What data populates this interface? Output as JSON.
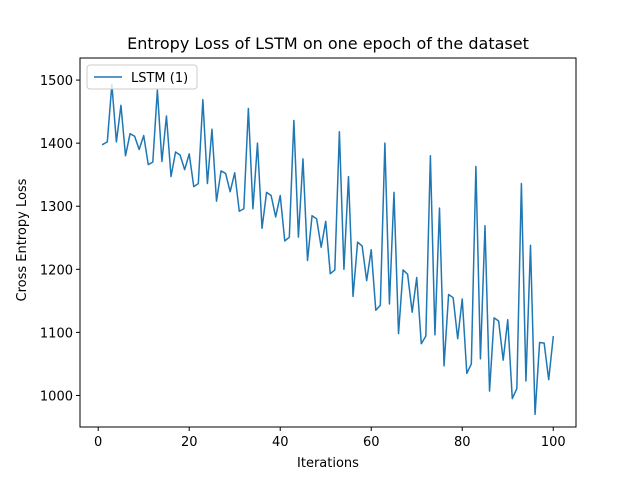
{
  "chart_data": {
    "type": "line",
    "title": "Entropy Loss of LSTM on one epoch of the dataset",
    "xlabel": "Iterations",
    "ylabel": "Cross Entropy Loss",
    "xlim": [
      -4,
      105
    ],
    "ylim": [
      950,
      1535
    ],
    "xticks": [
      0,
      20,
      40,
      60,
      80,
      100
    ],
    "yticks": [
      1000,
      1100,
      1200,
      1300,
      1400,
      1500
    ],
    "grid": false,
    "legend_position": "top-left",
    "series": [
      {
        "name": "LSTM (1)",
        "color": "#1f77b4",
        "x": [
          1,
          2,
          3,
          4,
          5,
          6,
          7,
          8,
          9,
          10,
          11,
          12,
          13,
          14,
          15,
          16,
          17,
          18,
          19,
          20,
          21,
          22,
          23,
          24,
          25,
          26,
          27,
          28,
          29,
          30,
          31,
          32,
          33,
          34,
          35,
          36,
          37,
          38,
          39,
          40,
          41,
          42,
          43,
          44,
          45,
          46,
          47,
          48,
          49,
          50,
          51,
          52,
          53,
          54,
          55,
          56,
          57,
          58,
          59,
          60,
          61,
          62,
          63,
          64,
          65,
          66,
          67,
          68,
          69,
          70,
          71,
          72,
          73,
          74,
          75,
          76,
          77,
          78,
          79,
          80,
          81,
          82,
          83,
          84,
          85,
          86,
          87,
          88,
          89,
          90,
          91,
          92,
          93,
          94,
          95,
          96,
          97,
          98,
          99,
          100
        ],
        "values": [
          1398,
          1402,
          1493,
          1402,
          1460,
          1380,
          1415,
          1411,
          1390,
          1412,
          1366,
          1370,
          1484,
          1371,
          1443,
          1347,
          1386,
          1381,
          1358,
          1383,
          1331,
          1336,
          1469,
          1336,
          1422,
          1308,
          1356,
          1352,
          1323,
          1353,
          1292,
          1296,
          1455,
          1296,
          1400,
          1265,
          1322,
          1317,
          1283,
          1317,
          1245,
          1251,
          1436,
          1251,
          1375,
          1214,
          1285,
          1280,
          1235,
          1276,
          1193,
          1199,
          1418,
          1200,
          1347,
          1157,
          1243,
          1237,
          1182,
          1231,
          1135,
          1143,
          1400,
          1145,
          1322,
          1098,
          1199,
          1192,
          1132,
          1187,
          1082,
          1094,
          1380,
          1096,
          1297,
          1047,
          1160,
          1155,
          1090,
          1153,
          1035,
          1050,
          1363,
          1058,
          1269,
          1007,
          1123,
          1118,
          1056,
          1120,
          995,
          1011,
          1336,
          1023,
          1238,
          970,
          1084,
          1083,
          1025,
          1093
        ]
      }
    ]
  }
}
